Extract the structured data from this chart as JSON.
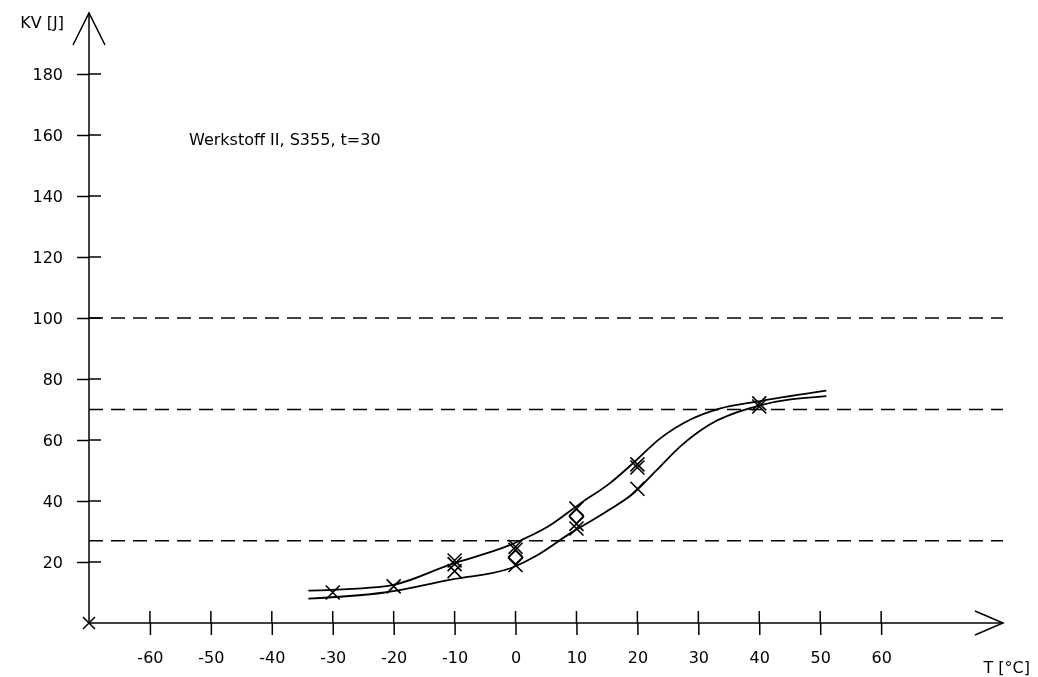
{
  "chart_data": {
    "type": "scatter",
    "xlabel": "T [°C]",
    "ylabel": "KV [J]",
    "annotations": [
      "Werkstoff II, S355, t=30"
    ],
    "xlim": [
      -70,
      80
    ],
    "ylim": [
      0,
      200
    ],
    "xticks": [
      -60,
      -50,
      -40,
      -30,
      -20,
      -10,
      0,
      10,
      20,
      30,
      40,
      50,
      60
    ],
    "yticks": [
      20,
      40,
      60,
      80,
      100,
      120,
      140,
      160,
      180
    ],
    "grid": false,
    "ref_lines": [
      {
        "axis": "y",
        "value": 100,
        "line_style": "dashed",
        "color": "#000000"
      },
      {
        "axis": "y",
        "value": 70,
        "line_style": "dashed",
        "color": "#000000"
      },
      {
        "axis": "y",
        "value": 27,
        "line_style": "dashed",
        "color": "#000000"
      }
    ],
    "series": [
      {
        "marker": "cross",
        "color": "#000000",
        "x": [
          -30,
          -20,
          -10,
          -10,
          -10,
          0,
          0,
          0,
          10,
          10,
          10,
          20,
          20,
          20,
          40,
          40
        ],
        "values": [
          10,
          12,
          20.5,
          19.3,
          17,
          25,
          24,
          19,
          37.5,
          32.5,
          31,
          52,
          51,
          44,
          72,
          71
        ]
      },
      {
        "marker": "diamond",
        "color": "#000000",
        "x": [
          0,
          10
        ],
        "values": [
          21.5,
          35
        ]
      },
      {
        "type": "line",
        "marker": "none",
        "line_style": "solid",
        "color": "#000000",
        "x": [
          -34,
          -21.5,
          -10.4,
          -0.5,
          5.4,
          10.7,
          15.4,
          19.5,
          23.6,
          28.8,
          33.5,
          39.9,
          51
        ],
        "values": [
          10.6,
          12,
          19.4,
          25.9,
          31.7,
          39.3,
          45.7,
          52.8,
          60.3,
          66.8,
          70.3,
          72.7,
          76.2
        ]
      },
      {
        "type": "line",
        "marker": "none",
        "line_style": "solid",
        "color": "#000000",
        "x": [
          -34,
          -21.5,
          -10.4,
          -0.5,
          3.1,
          8.9,
          14.8,
          19.5,
          23,
          27.1,
          31.8,
          39.3,
          51
        ],
        "values": [
          8,
          10,
          14.3,
          18.2,
          21.7,
          29.3,
          36.4,
          42.8,
          49.8,
          58,
          65,
          70.9,
          74.4
        ]
      }
    ]
  }
}
